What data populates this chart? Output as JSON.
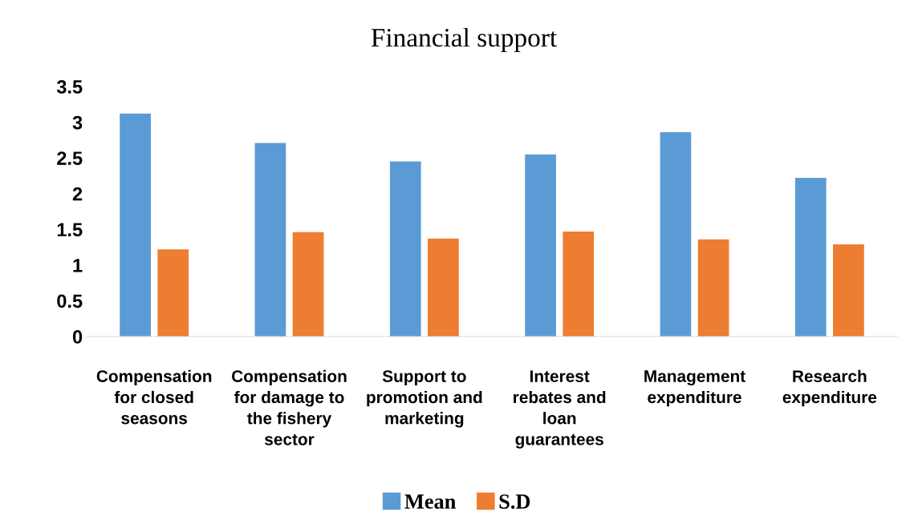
{
  "chart_data": {
    "type": "bar",
    "title": "Financial support",
    "categories": [
      "Compensation for closed seasons",
      "Compensation for damage to the fishery sector",
      "Support to promotion and marketing",
      "Interest rebates and loan guarantees",
      "Management expenditure",
      "Research expenditure"
    ],
    "series": [
      {
        "name": "Mean",
        "color": "#5b9bd5",
        "values": [
          3.12,
          2.71,
          2.45,
          2.55,
          2.86,
          2.22
        ]
      },
      {
        "name": "S.D",
        "color": "#ed7d31",
        "values": [
          1.22,
          1.46,
          1.37,
          1.47,
          1.36,
          1.29
        ]
      }
    ],
    "ylim": [
      0,
      3.5
    ],
    "yticks": [
      0,
      0.5,
      1,
      1.5,
      2,
      2.5,
      3,
      3.5
    ],
    "grid": false,
    "legend": "bottom"
  }
}
